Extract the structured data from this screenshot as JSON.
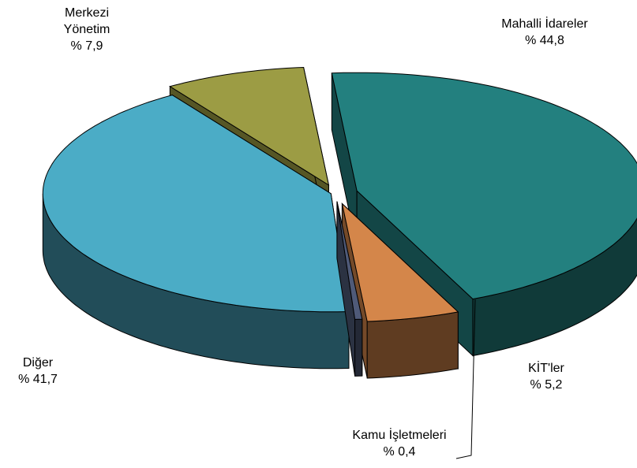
{
  "chart_data": {
    "type": "pie3d",
    "categories": [
      "Mahalli İdareler",
      "KİT'ler",
      "Kamu İşletmeleri",
      "Diğer",
      "Merkezi Yönetim"
    ],
    "values": [
      44.8,
      5.2,
      0.4,
      41.7,
      7.9
    ],
    "value_labels": [
      "% 44,8",
      "% 5,2",
      "% 0,4",
      "% 41,7",
      "% 7,9"
    ],
    "colors": [
      "#23807f",
      "#d4864a",
      "#4f5a78",
      "#4bacc6",
      "#9c9c44"
    ]
  }
}
